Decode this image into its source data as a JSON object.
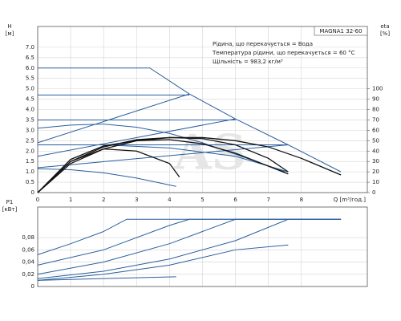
{
  "chart_data": [
    {
      "type": "line",
      "title": "MAGNA1 32-60",
      "annotations": [
        "Рідина, що перекачується = Вода",
        "Температура рідини, що перекачується = 60 °C",
        "Щільність = 983,2 кг/м³"
      ],
      "watermark": "AS",
      "ylabel": "H",
      "yunit": "[м]",
      "y2label": "eta",
      "y2unit": "[%]",
      "xlabel": "Q [m³/год.]",
      "xlim": [
        0,
        10
      ],
      "xticks": [
        0,
        1,
        2,
        3,
        4,
        5,
        6,
        7,
        8
      ],
      "ylim": [
        0,
        8
      ],
      "yticks": [
        0,
        0.5,
        {
          "value": 1,
          "label": "1.0"
        },
        1.5,
        {
          "value": 2,
          "label": "2.0"
        },
        2.5,
        {
          "value": 3,
          "label": "3.0"
        },
        3.5,
        {
          "value": 4,
          "label": "4.0"
        },
        4.5,
        {
          "value": 5,
          "label": "5.0"
        },
        5.5,
        {
          "value": 6,
          "label": "6.0"
        },
        6.5,
        {
          "value": 7,
          "label": "7.0"
        }
      ],
      "y2lim": [
        0,
        160
      ],
      "y2ticks": [
        0,
        10,
        20,
        30,
        40,
        50,
        60,
        70,
        80,
        90,
        100
      ],
      "grid": true,
      "series": [
        {
          "color": "#2a5f9e",
          "x": [
            0,
            3.4,
            4.6,
            6.0,
            7.6,
            9.2
          ],
          "values": [
            6.0,
            6.0,
            4.75,
            3.55,
            2.3,
            1.0
          ]
        },
        {
          "color": "#2a5f9e",
          "x": [
            0,
            4.6
          ],
          "values": [
            4.7,
            4.7
          ]
        },
        {
          "color": "#2a5f9e",
          "x": [
            0,
            6.0
          ],
          "values": [
            3.5,
            3.5
          ]
        },
        {
          "color": "#2a5f9e",
          "x": [
            0,
            7.6
          ],
          "values": [
            2.3,
            2.3
          ]
        },
        {
          "color": "#2a5f9e",
          "x": [
            0,
            4.6
          ],
          "values": [
            2.4,
            4.75
          ]
        },
        {
          "color": "#2a5f9e",
          "x": [
            0,
            6.0
          ],
          "values": [
            1.75,
            3.55
          ]
        },
        {
          "color": "#2a5f9e",
          "x": [
            0,
            7.6
          ],
          "values": [
            1.2,
            2.3
          ]
        },
        {
          "color": "#2a5f9e",
          "x": [
            0,
            1,
            2,
            3,
            4,
            5,
            6,
            7.5
          ],
          "values": [
            3.1,
            3.25,
            3.3,
            3.15,
            2.85,
            2.4,
            1.85,
            1.0
          ]
        },
        {
          "color": "#2a5f9e",
          "x": [
            0,
            2,
            4,
            6,
            7.6
          ],
          "values": [
            2.3,
            2.3,
            2.15,
            1.75,
            1.0
          ]
        },
        {
          "color": "#2a5f9e",
          "x": [
            0,
            1,
            2,
            3,
            4.2
          ],
          "values": [
            1.15,
            1.1,
            0.95,
            0.7,
            0.3
          ]
        },
        {
          "color": "#111111",
          "axis": "y2",
          "x": [
            0,
            1,
            2,
            3,
            4,
            5,
            6,
            7,
            8,
            9.2
          ],
          "values": [
            0,
            28,
            42,
            50,
            53,
            53,
            50,
            44,
            33,
            17
          ]
        },
        {
          "color": "#111111",
          "axis": "y2",
          "x": [
            0,
            1,
            2,
            3,
            4,
            5,
            6,
            7,
            7.6
          ],
          "values": [
            0,
            30,
            44,
            51,
            53,
            52,
            46,
            33,
            20
          ]
        },
        {
          "color": "#111111",
          "axis": "y2",
          "x": [
            0,
            1,
            2,
            3,
            4,
            5,
            6,
            7.6
          ],
          "values": [
            0,
            32,
            45,
            50,
            51,
            47,
            38,
            18
          ]
        },
        {
          "color": "#111111",
          "axis": "y2",
          "x": [
            0,
            1,
            2,
            3,
            4,
            4.3
          ],
          "values": [
            0,
            30,
            42,
            40,
            28,
            15
          ]
        }
      ]
    },
    {
      "type": "line",
      "ylabel": "P1",
      "yunit": "[кВт]",
      "xlim": [
        0,
        10
      ],
      "ylim": [
        0,
        0.13
      ],
      "yticks": [
        0,
        {
          "value": 0.02,
          "label": "0,02"
        },
        {
          "value": 0.04,
          "label": "0,04"
        },
        {
          "value": 0.06,
          "label": "0,06"
        },
        {
          "value": 0.08,
          "label": "0,08"
        }
      ],
      "grid": true,
      "series": [
        {
          "color": "#2a5f9e",
          "x": [
            0,
            1,
            2,
            2.7,
            9.2
          ],
          "values": [
            0.052,
            0.07,
            0.09,
            0.11,
            0.11
          ]
        },
        {
          "color": "#2a5f9e",
          "x": [
            0,
            2,
            4,
            4.6,
            9.2
          ],
          "values": [
            0.035,
            0.06,
            0.1,
            0.11,
            0.11
          ]
        },
        {
          "color": "#2a5f9e",
          "x": [
            0,
            2,
            4,
            6,
            9.2
          ],
          "values": [
            0.02,
            0.04,
            0.07,
            0.11,
            0.11
          ]
        },
        {
          "color": "#2a5f9e",
          "x": [
            0,
            2,
            4,
            6,
            7.6,
            9.2
          ],
          "values": [
            0.013,
            0.025,
            0.045,
            0.075,
            0.11,
            0.11
          ]
        },
        {
          "color": "#2a5f9e",
          "x": [
            0,
            2,
            4,
            6,
            7.6
          ],
          "values": [
            0.01,
            0.02,
            0.035,
            0.06,
            0.068
          ]
        },
        {
          "color": "#2a5f9e",
          "x": [
            0,
            2,
            4.2
          ],
          "values": [
            0.01,
            0.013,
            0.016
          ]
        }
      ]
    }
  ]
}
